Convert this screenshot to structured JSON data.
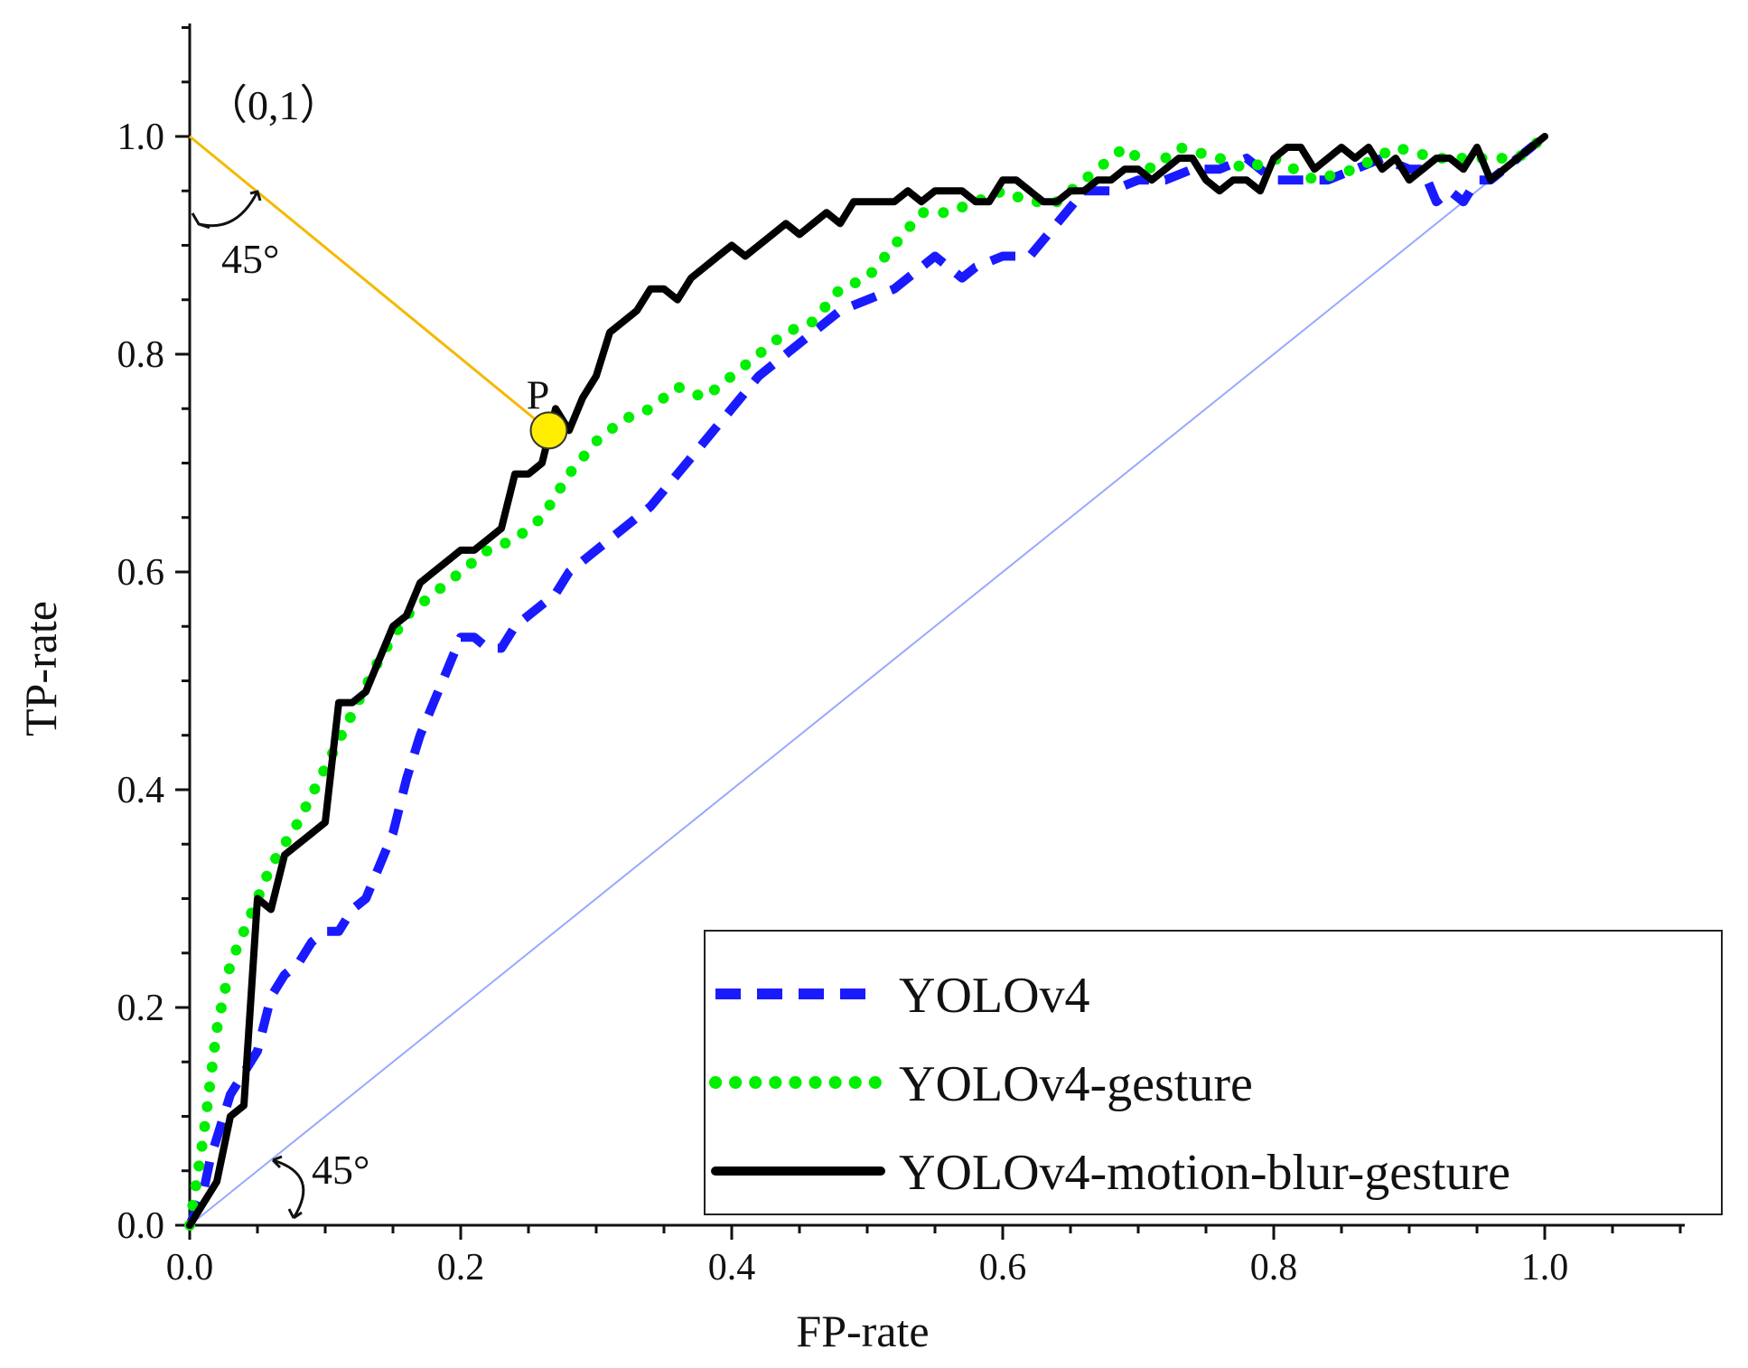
{
  "chart_data": {
    "type": "line",
    "xlabel": "FP-rate",
    "ylabel": "TP-rate",
    "xlim": [
      0,
      1.1
    ],
    "ylim": [
      0,
      1.1
    ],
    "xticks": [
      "0.0",
      "0.2",
      "0.4",
      "0.6",
      "0.8",
      "1.0"
    ],
    "yticks": [
      "0.0",
      "0.2",
      "0.4",
      "0.6",
      "0.8",
      "1.0"
    ],
    "xtick_values": [
      0,
      0.2,
      0.4,
      0.6,
      0.8,
      1.0
    ],
    "ytick_values": [
      0,
      0.2,
      0.4,
      0.6,
      0.8,
      1.0
    ],
    "grid": false,
    "legend_position": "bottom-right",
    "series": [
      {
        "name": "YOLOv4",
        "style": "dashed",
        "color": "#1a1aff",
        "x": [
          0,
          0.01,
          0.015,
          0.02,
          0.03,
          0.04,
          0.05,
          0.06,
          0.07,
          0.08,
          0.09,
          0.1,
          0.11,
          0.12,
          0.13,
          0.14,
          0.15,
          0.16,
          0.17,
          0.18,
          0.19,
          0.2,
          0.21,
          0.22,
          0.23,
          0.24,
          0.25,
          0.26,
          0.27,
          0.28,
          0.29,
          0.3,
          0.32,
          0.34,
          0.36,
          0.38,
          0.4,
          0.42,
          0.44,
          0.46,
          0.48,
          0.5,
          0.52,
          0.54,
          0.55,
          0.57,
          0.58,
          0.6,
          0.62,
          0.64,
          0.66,
          0.68,
          0.7,
          0.72,
          0.74,
          0.76,
          0.78,
          0.8,
          0.82,
          0.84,
          0.86,
          0.88,
          0.9,
          0.91,
          0.92,
          0.93,
          0.94,
          0.95,
          0.96,
          1.0
        ],
        "y": [
          0,
          0.03,
          0.06,
          0.08,
          0.12,
          0.14,
          0.16,
          0.21,
          0.23,
          0.24,
          0.26,
          0.27,
          0.27,
          0.29,
          0.3,
          0.33,
          0.36,
          0.41,
          0.45,
          0.48,
          0.51,
          0.54,
          0.54,
          0.53,
          0.53,
          0.55,
          0.56,
          0.57,
          0.58,
          0.6,
          0.61,
          0.62,
          0.64,
          0.66,
          0.69,
          0.72,
          0.75,
          0.78,
          0.8,
          0.82,
          0.84,
          0.85,
          0.86,
          0.88,
          0.89,
          0.87,
          0.88,
          0.89,
          0.89,
          0.92,
          0.95,
          0.95,
          0.96,
          0.96,
          0.97,
          0.97,
          0.98,
          0.96,
          0.96,
          0.96,
          0.97,
          0.98,
          0.97,
          0.97,
          0.94,
          0.95,
          0.94,
          0.96,
          0.96,
          1.0
        ]
      },
      {
        "name": "YOLOv4-gesture",
        "style": "dotted",
        "color": "#00ee00",
        "x": [
          0,
          0.01,
          0.02,
          0.03,
          0.04,
          0.05,
          0.06,
          0.08,
          0.1,
          0.12,
          0.14,
          0.16,
          0.18,
          0.2,
          0.22,
          0.24,
          0.26,
          0.28,
          0.3,
          0.32,
          0.34,
          0.36,
          0.38,
          0.4,
          0.42,
          0.44,
          0.46,
          0.48,
          0.5,
          0.52,
          0.54,
          0.56,
          0.58,
          0.6,
          0.62,
          0.64,
          0.66,
          0.69,
          0.71,
          0.73,
          0.76,
          0.78,
          0.8,
          0.83,
          0.86,
          0.89,
          0.92,
          0.95,
          0.98,
          1.0
        ],
        "y": [
          0,
          0.08,
          0.18,
          0.24,
          0.27,
          0.3,
          0.33,
          0.37,
          0.42,
          0.47,
          0.52,
          0.56,
          0.58,
          0.6,
          0.62,
          0.63,
          0.65,
          0.69,
          0.72,
          0.74,
          0.75,
          0.77,
          0.76,
          0.78,
          0.8,
          0.82,
          0.83,
          0.86,
          0.87,
          0.9,
          0.93,
          0.93,
          0.94,
          0.95,
          0.94,
          0.94,
          0.96,
          0.99,
          0.97,
          0.99,
          0.98,
          0.97,
          0.98,
          0.96,
          0.97,
          0.99,
          0.98,
          0.98,
          0.98,
          1.0
        ]
      },
      {
        "name": "YOLOv4-motion-blur-gesture",
        "style": "solid",
        "color": "#000000",
        "x": [
          0,
          0.01,
          0.02,
          0.03,
          0.04,
          0.05,
          0.06,
          0.07,
          0.08,
          0.09,
          0.1,
          0.11,
          0.12,
          0.13,
          0.14,
          0.15,
          0.16,
          0.17,
          0.18,
          0.19,
          0.2,
          0.21,
          0.22,
          0.23,
          0.24,
          0.25,
          0.26,
          0.27,
          0.28,
          0.29,
          0.3,
          0.31,
          0.32,
          0.33,
          0.34,
          0.35,
          0.36,
          0.37,
          0.38,
          0.39,
          0.4,
          0.41,
          0.42,
          0.43,
          0.44,
          0.45,
          0.46,
          0.47,
          0.48,
          0.49,
          0.5,
          0.51,
          0.52,
          0.53,
          0.54,
          0.55,
          0.56,
          0.57,
          0.58,
          0.59,
          0.6,
          0.61,
          0.62,
          0.63,
          0.64,
          0.65,
          0.66,
          0.67,
          0.68,
          0.69,
          0.7,
          0.71,
          0.72,
          0.73,
          0.74,
          0.75,
          0.76,
          0.77,
          0.78,
          0.79,
          0.8,
          0.81,
          0.82,
          0.83,
          0.84,
          0.85,
          0.86,
          0.87,
          0.88,
          0.89,
          0.9,
          0.91,
          0.92,
          0.93,
          0.94,
          0.95,
          0.96,
          0.97,
          0.98,
          0.99,
          1.0
        ],
        "y": [
          0,
          0.02,
          0.04,
          0.1,
          0.11,
          0.3,
          0.29,
          0.34,
          0.35,
          0.36,
          0.37,
          0.48,
          0.48,
          0.49,
          0.52,
          0.55,
          0.56,
          0.59,
          0.6,
          0.61,
          0.62,
          0.62,
          0.63,
          0.64,
          0.69,
          0.69,
          0.7,
          0.75,
          0.73,
          0.76,
          0.78,
          0.82,
          0.83,
          0.84,
          0.86,
          0.86,
          0.85,
          0.87,
          0.88,
          0.89,
          0.9,
          0.89,
          0.9,
          0.91,
          0.92,
          0.91,
          0.92,
          0.93,
          0.92,
          0.94,
          0.94,
          0.94,
          0.94,
          0.95,
          0.94,
          0.95,
          0.95,
          0.95,
          0.94,
          0.94,
          0.96,
          0.96,
          0.95,
          0.94,
          0.94,
          0.95,
          0.95,
          0.96,
          0.96,
          0.97,
          0.97,
          0.96,
          0.97,
          0.98,
          0.98,
          0.96,
          0.95,
          0.96,
          0.96,
          0.95,
          0.98,
          0.99,
          0.99,
          0.97,
          0.98,
          0.99,
          0.98,
          0.99,
          0.97,
          0.98,
          0.96,
          0.97,
          0.98,
          0.98,
          0.97,
          0.99,
          0.96,
          0.97,
          0.98,
          0.99,
          1.0
        ]
      }
    ],
    "reference_line": {
      "x": [
        0,
        1
      ],
      "y": [
        0,
        1
      ],
      "color": "#9aa8ff"
    },
    "annotations": {
      "origin_label": "（0,1）",
      "angle_top": "45°",
      "angle_bottom": "45°",
      "point_label": "P",
      "point": {
        "x": 0.265,
        "y": 0.73
      },
      "corner": {
        "x": 0,
        "y": 1
      },
      "connector_color": "#f5b800",
      "point_color": "#ffee00"
    }
  }
}
